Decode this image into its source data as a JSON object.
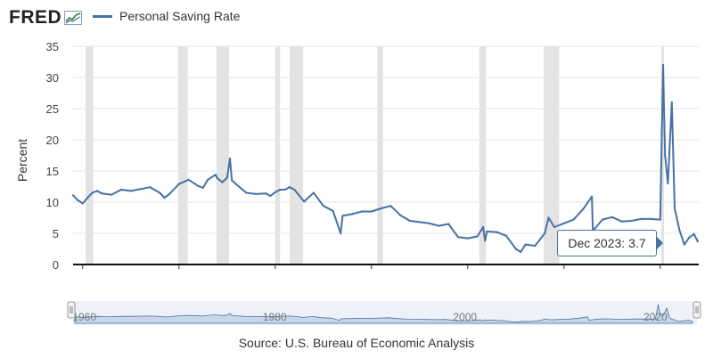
{
  "header": {
    "logo_text": "FRED",
    "series_name": "Personal Saving Rate"
  },
  "tooltip": {
    "label": "Dec 2023:",
    "value": "3.7"
  },
  "navigator": {
    "labels": [
      "1960",
      "1980",
      "2000",
      "2020"
    ]
  },
  "source": "Source: U.S. Bureau of Economic Analysis",
  "colors": {
    "line": "#4572a7",
    "recession": "#e3e3e3",
    "grid": "#e6e6e6",
    "navigator_fill": "#c8d6ea",
    "navigator_line": "#4572a7"
  },
  "icons": {
    "logo_mark": "trend-chart-icon"
  },
  "chart_data": {
    "type": "line",
    "title": "",
    "xlabel": "",
    "ylabel": "Percent",
    "xlim": [
      1959,
      2024
    ],
    "ylim": [
      0,
      35
    ],
    "xticks": [
      1960,
      1970,
      1980,
      1990,
      2000,
      2010,
      2020
    ],
    "yticks": [
      0,
      5,
      10,
      15,
      20,
      25,
      30,
      35
    ],
    "grid": true,
    "legend": "top-left",
    "recessions": [
      [
        1960.3,
        1961.1
      ],
      [
        1969.9,
        1970.9
      ],
      [
        1973.9,
        1975.2
      ],
      [
        1980.0,
        1980.5
      ],
      [
        1981.5,
        1982.9
      ],
      [
        1990.6,
        1991.2
      ],
      [
        2001.2,
        2001.9
      ],
      [
        2007.9,
        2009.5
      ],
      [
        2020.1,
        2020.4
      ]
    ],
    "series": [
      {
        "name": "Personal Saving Rate",
        "x": [
          1959.0,
          1959.5,
          1960.0,
          1960.5,
          1961.0,
          1961.5,
          1962.0,
          1963.0,
          1964.0,
          1965.0,
          1966.0,
          1967.0,
          1968.0,
          1968.5,
          1969.0,
          1970.0,
          1971.0,
          1972.0,
          1972.5,
          1973.0,
          1973.8,
          1974.0,
          1974.5,
          1975.0,
          1975.3,
          1975.5,
          1976.0,
          1977.0,
          1978.0,
          1979.0,
          1979.5,
          1980.0,
          1980.5,
          1981.0,
          1981.5,
          1982.0,
          1983.0,
          1984.0,
          1985.0,
          1986.0,
          1986.8,
          1987.0,
          1988.0,
          1989.0,
          1990.0,
          1991.0,
          1992.0,
          1993.0,
          1994.0,
          1995.0,
          1996.0,
          1997.0,
          1998.0,
          1999.0,
          2000.0,
          2001.0,
          2001.6,
          2001.8,
          2002.0,
          2003.0,
          2004.0,
          2005.0,
          2005.5,
          2006.0,
          2007.0,
          2008.0,
          2008.4,
          2009.0,
          2010.0,
          2011.0,
          2012.0,
          2012.9,
          2013.0,
          2014.0,
          2015.0,
          2016.0,
          2017.0,
          2018.0,
          2019.0,
          2020.0,
          2020.3,
          2020.5,
          2020.8,
          2021.0,
          2021.2,
          2021.5,
          2022.0,
          2022.5,
          2023.0,
          2023.5,
          2023.9
        ],
        "values": [
          11.1,
          10.3,
          9.8,
          10.7,
          11.5,
          11.8,
          11.4,
          11.2,
          12.0,
          11.8,
          12.1,
          12.4,
          11.5,
          10.7,
          11.3,
          12.9,
          13.6,
          12.6,
          12.3,
          13.6,
          14.4,
          13.8,
          13.2,
          13.9,
          17.0,
          13.5,
          12.8,
          11.5,
          11.3,
          11.4,
          11.0,
          11.6,
          12.0,
          12.0,
          12.4,
          12.0,
          10.1,
          11.5,
          9.4,
          8.6,
          5.0,
          7.8,
          8.1,
          8.5,
          8.5,
          9.0,
          9.4,
          7.9,
          7.0,
          6.8,
          6.6,
          6.2,
          6.5,
          4.4,
          4.2,
          4.5,
          6.0,
          3.8,
          5.3,
          5.2,
          4.6,
          2.5,
          2.0,
          3.2,
          3.0,
          5.0,
          7.5,
          6.0,
          6.6,
          7.2,
          8.9,
          10.9,
          5.4,
          7.2,
          7.6,
          6.9,
          7.0,
          7.3,
          7.3,
          7.2,
          32.0,
          17.5,
          13.0,
          19.5,
          26.0,
          9.0,
          5.5,
          3.2,
          4.3,
          4.9,
          3.7
        ]
      }
    ]
  }
}
